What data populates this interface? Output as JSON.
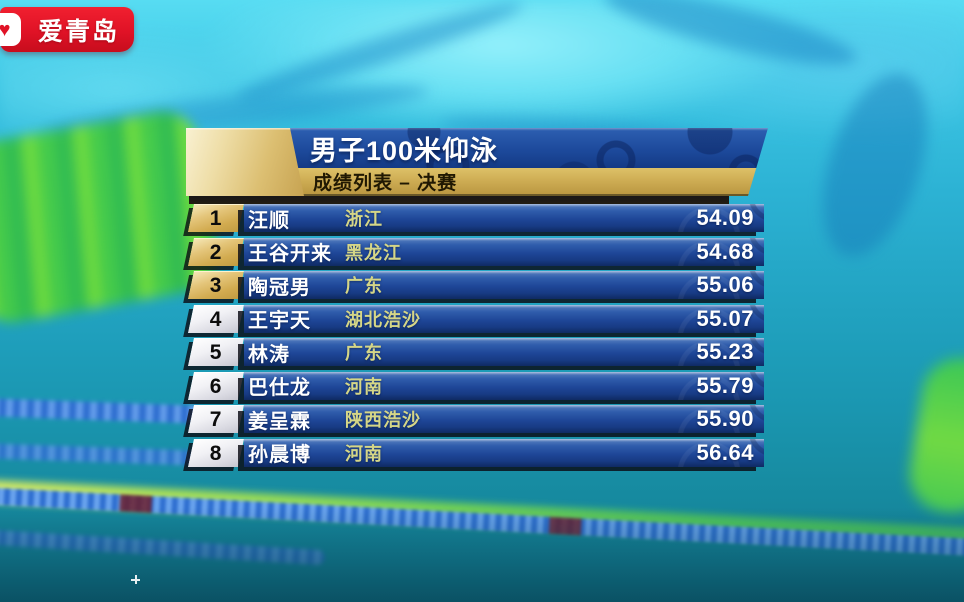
{
  "logo": {
    "text": "爱青岛",
    "bg_color": "#e01226",
    "icon": "heart-icon"
  },
  "scoreboard": {
    "title": "男子100米仰泳",
    "subtitle": "成绩列表 – 决赛",
    "colors": {
      "bar_blue": "#1d4a9c",
      "accent_gold": "#cfae55",
      "team_text": "#d5d687",
      "medal_rank_gold": "#e0c176",
      "plain_rank_silver": "#ebebf0"
    },
    "rows": [
      {
        "rank": "1",
        "name": "汪顺",
        "team": "浙江",
        "time": "54.09",
        "rank_style": "gold"
      },
      {
        "rank": "2",
        "name": "王谷开来",
        "team": "黑龙江",
        "time": "54.68",
        "rank_style": "gold"
      },
      {
        "rank": "3",
        "name": "陶冠男",
        "team": "广东",
        "time": "55.06",
        "rank_style": "gold"
      },
      {
        "rank": "4",
        "name": "王宇天",
        "team": "湖北浩沙",
        "time": "55.07",
        "rank_style": "silver"
      },
      {
        "rank": "5",
        "name": "林涛",
        "team": "广东",
        "time": "55.23",
        "rank_style": "silver"
      },
      {
        "rank": "6",
        "name": "巴仕龙",
        "team": "河南",
        "time": "55.79",
        "rank_style": "silver"
      },
      {
        "rank": "7",
        "name": "姜呈霖",
        "team": "陕西浩沙",
        "time": "55.90",
        "rank_style": "silver"
      },
      {
        "rank": "8",
        "name": "孙晨博",
        "team": "河南",
        "time": "56.64",
        "rank_style": "silver"
      }
    ]
  }
}
